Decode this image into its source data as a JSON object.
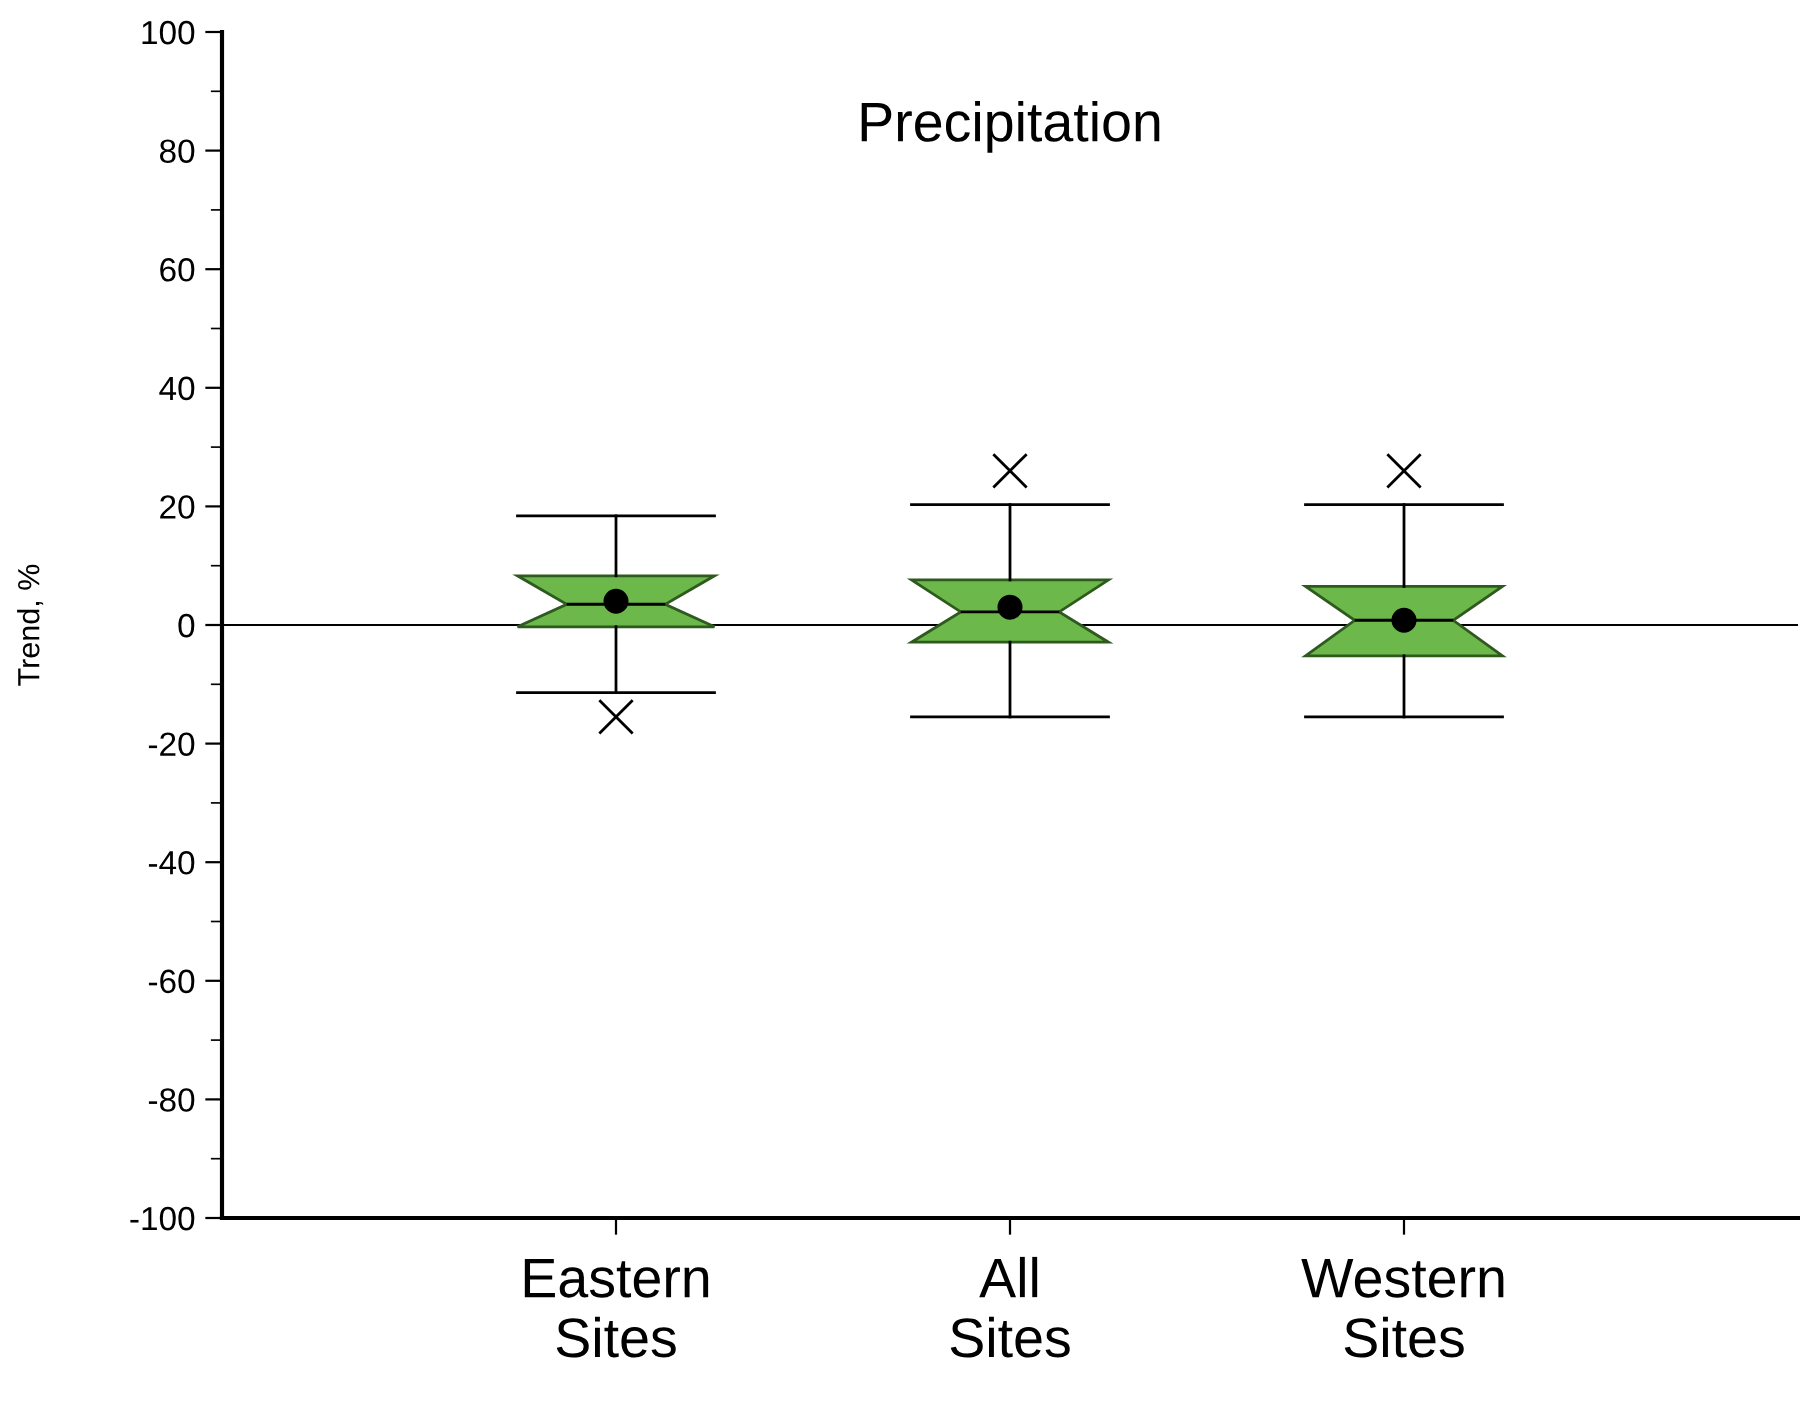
{
  "chart_data": {
    "type": "box",
    "title": "Precipitation",
    "ylabel": "Trend, %",
    "categories": [
      "Eastern\nSites",
      "All\nSites",
      "Western\nSites"
    ],
    "color": "#6db84a",
    "boxes": [
      {
        "low": -11.4,
        "q1": -0.3,
        "median": 3.5,
        "q3": 8.3,
        "high": 18.4,
        "mean": 4.0,
        "outliers": [
          -15.5
        ]
      },
      {
        "low": -15.5,
        "q1": -2.9,
        "median": 2.2,
        "q3": 7.6,
        "high": 20.3,
        "mean": 3.0,
        "outliers": [
          26
        ]
      },
      {
        "low": -15.5,
        "q1": -5.2,
        "median": 0.8,
        "q3": 6.5,
        "high": 20.3,
        "mean": 0.8,
        "outliers": [
          26
        ]
      }
    ],
    "ylim": [
      -100,
      100
    ],
    "yticks": [
      -100,
      -80,
      -60,
      -40,
      -20,
      0,
      20,
      40,
      60,
      80,
      100
    ],
    "ref_lines": [
      {
        "axis": "y",
        "value": 0,
        "color": "#000000"
      }
    ],
    "grid": false,
    "legend": false
  }
}
